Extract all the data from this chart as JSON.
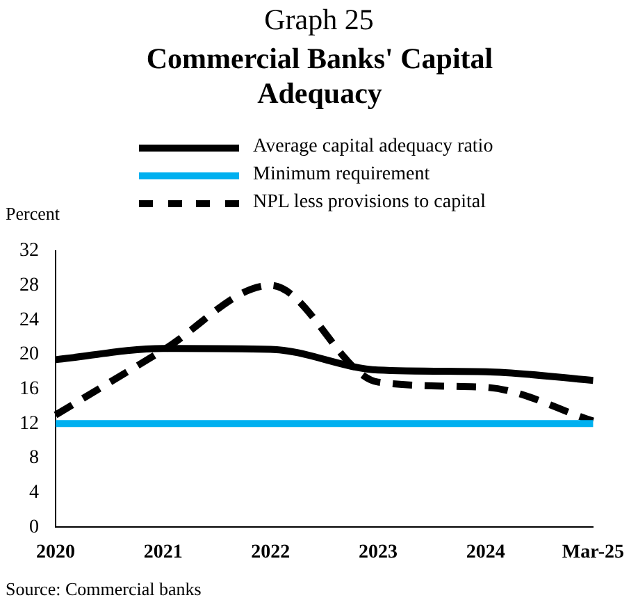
{
  "chart_data": {
    "type": "line",
    "title": "Graph 25",
    "subtitle": "Commercial Banks' Capital Adequacy",
    "ylabel": "Percent",
    "categories": [
      "2020",
      "2021",
      "2022",
      "2023",
      "2024",
      "Mar-25"
    ],
    "series": [
      {
        "name": "Average capital adequacy ratio",
        "color": "#000000",
        "values": [
          19.4,
          20.7,
          20.6,
          18.2,
          18,
          17
        ],
        "line_style": "solid"
      },
      {
        "name": "Minimum requirement",
        "color": "#00b0f0",
        "values": [
          12,
          12,
          12,
          12,
          12,
          12
        ],
        "line_style": "solid"
      },
      {
        "name": "NPL less provisions to capital",
        "color": "#000000",
        "values": [
          13,
          20.5,
          28,
          16.8,
          16.2,
          12.3
        ],
        "line_style": "dashed"
      }
    ],
    "ylim": [
      0,
      32
    ],
    "yticks": [
      0,
      4,
      8,
      12,
      16,
      20,
      24,
      28,
      32
    ],
    "grid": false,
    "legend": "top",
    "marker": "none",
    "annotations": [
      "Source:  Commercial banks"
    ]
  }
}
